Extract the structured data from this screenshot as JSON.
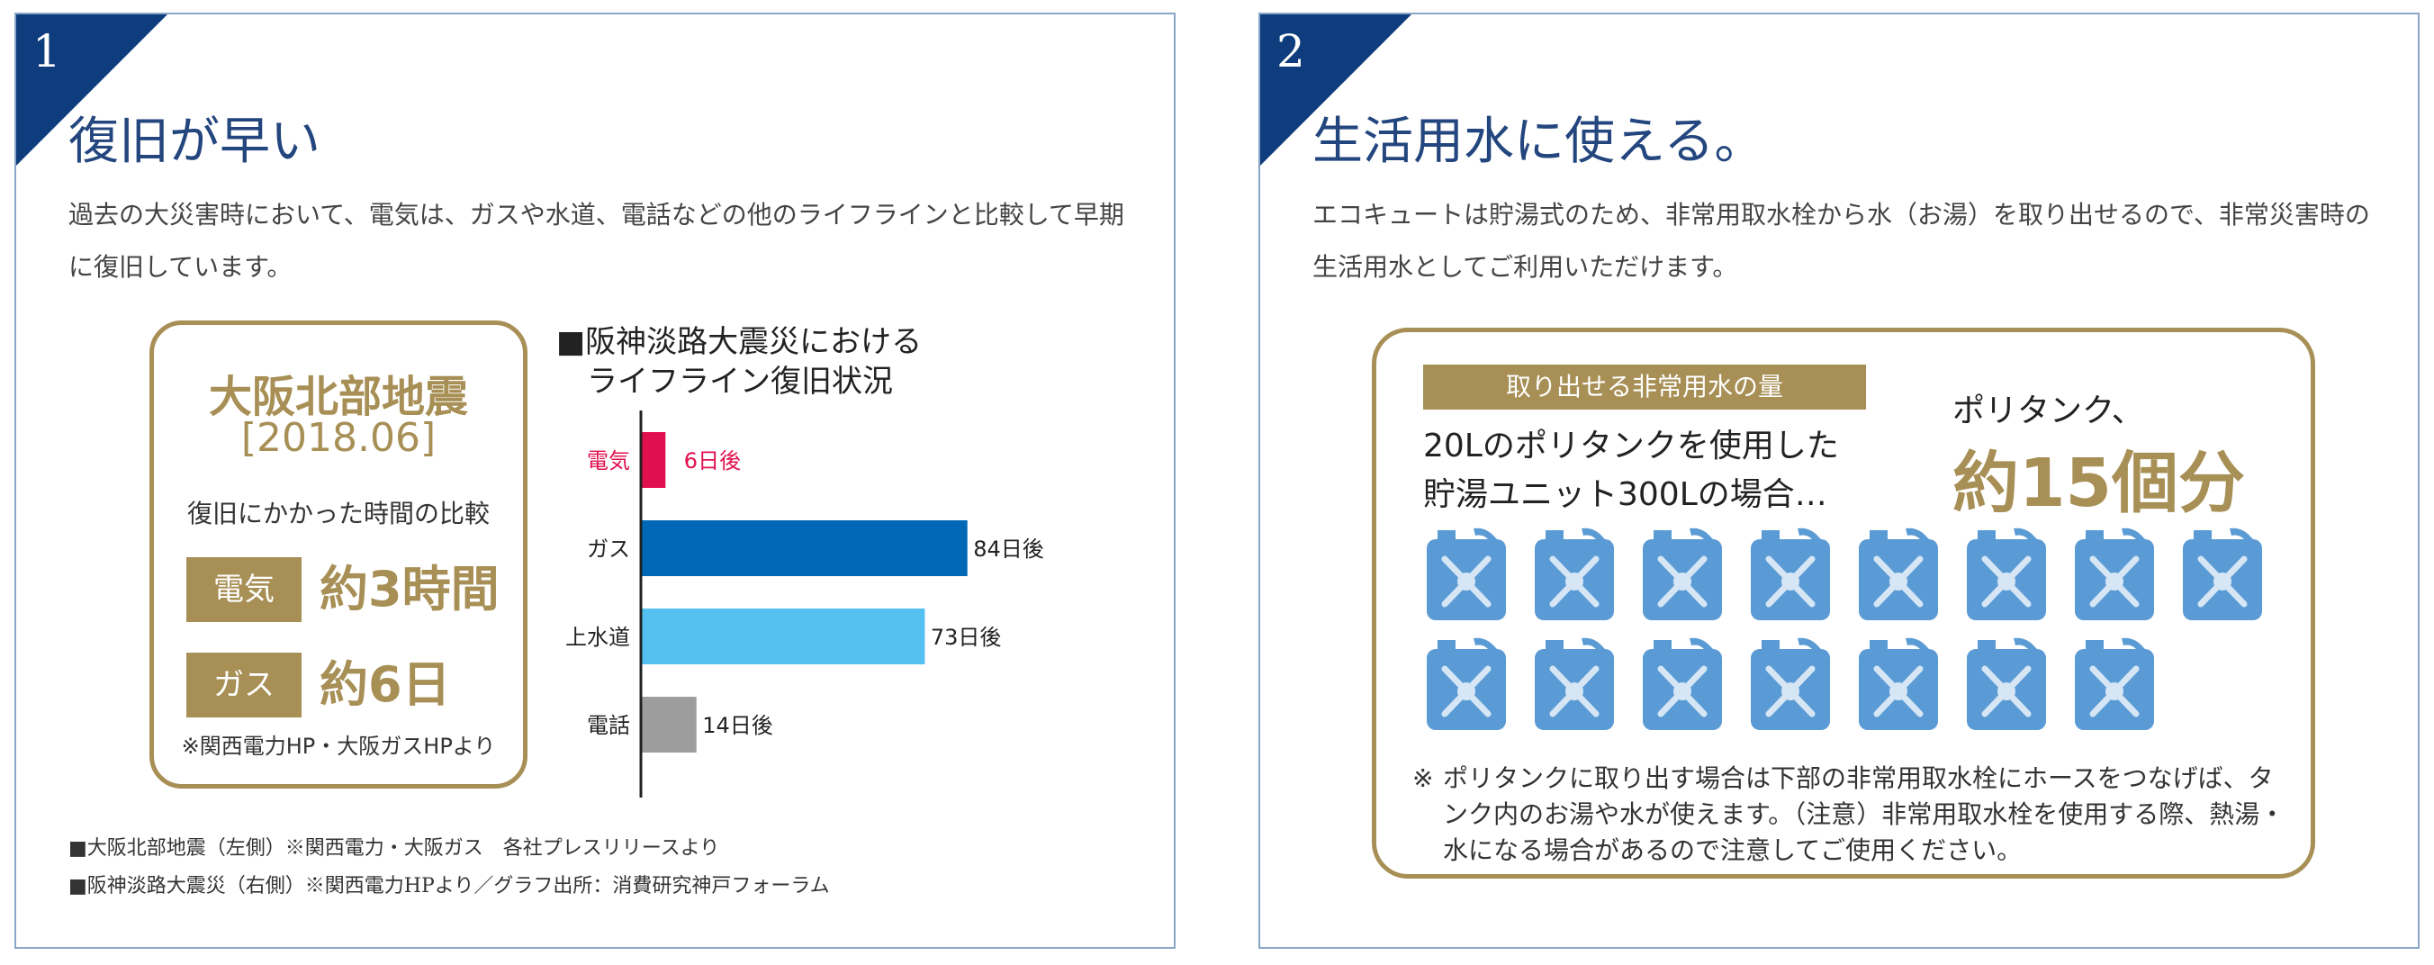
{
  "panel1": {
    "number": "1",
    "title": "復旧が早い",
    "description": "過去の大災害時において、電気は、ガスや水道、電話などの他のライフラインと比較して早期に復旧しています。",
    "osaka_box": {
      "title": "大阪北部地震",
      "date": "[2018.06]",
      "subtitle": "復旧にかかった時間の比較",
      "rows": [
        {
          "label": "電気",
          "value": "約3時間"
        },
        {
          "label": "ガス",
          "value": "約6日"
        }
      ],
      "source": "※関西電力HP・大阪ガスHPより"
    },
    "chart_title_line1": "■阪神淡路大震災における",
    "chart_title_line2": "ライフライン復旧状況",
    "footnotes": [
      "■大阪北部地震（左側）※関西電力・大阪ガス　各社プレスリリースより",
      "■阪神淡路大震災（右側）※関西電力HPより／グラフ出所：消費研究神戸フォーラム"
    ]
  },
  "chart_data": {
    "type": "bar",
    "orientation": "horizontal",
    "title": "阪神淡路大震災における ライフライン復旧状況",
    "categories": [
      "電気",
      "ガス",
      "上水道",
      "電話"
    ],
    "values": [
      6,
      84,
      73,
      14
    ],
    "data_labels": [
      "6日後",
      "84日後",
      "73日後",
      "14日後"
    ],
    "colors": [
      "#e0104f",
      "#0068b7",
      "#54c0f0",
      "#9d9d9d"
    ],
    "category_label_colors": [
      "#e0104f",
      "#222222",
      "#222222",
      "#222222"
    ],
    "data_label_colors": [
      "#e0104f",
      "#222222",
      "#222222",
      "#222222"
    ],
    "xlim": [
      0,
      100
    ],
    "grid": false,
    "xlabel": "",
    "ylabel": ""
  },
  "panel2": {
    "number": "2",
    "title": "生活用水に使える。",
    "description": "エコキュートは貯湯式のため、非常用取水栓から水（お湯）を取り出せるので、非常災害時の生活用水としてご利用いただけます。",
    "amount_badge": "取り出せる非常用水の量",
    "case_line1": "20Lのポリタンクを使用した",
    "case_line2": "貯湯ユニット300Lの場合…",
    "poly_label": "ポリタンク、",
    "poly_count": "約15個分",
    "tank_count": 15,
    "tank_icon": "water-tank-icon",
    "tank_color": "#5b9bd5",
    "note_mark": "※",
    "note": "ポリタンクに取り出す場合は下部の非常用取水栓にホースをつなげば、タンク内のお湯や水が使えます。（注意）非常用取水栓を使用する際、熱湯・水になる場合があるので注意してご使用ください。"
  }
}
